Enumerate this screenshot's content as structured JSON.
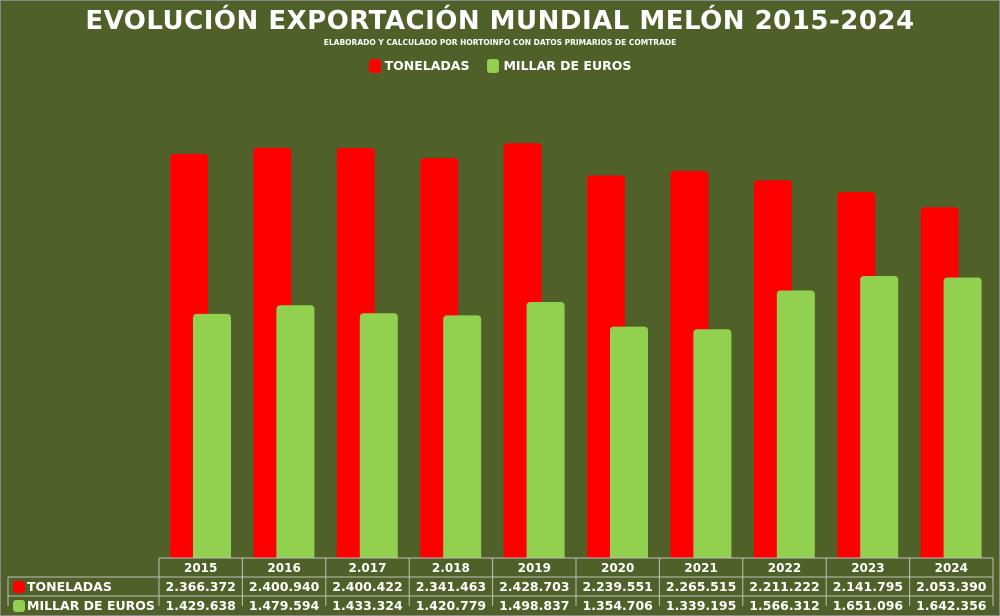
{
  "chart_data": {
    "type": "bar",
    "title": "EVOLUCIÓN EXPORTACIÓN MUNDIAL MELÓN 2015-2024",
    "subtitle": "ELABORADO Y CALCULADO POR HORTOINFO CON DATOS PRIMARIOS DE COMTRADE",
    "categories": [
      "2015",
      "2016",
      "2.017",
      "2.018",
      "2019",
      "2020",
      "2021",
      "2022",
      "2023",
      "2024"
    ],
    "series": [
      {
        "name": "TONELADAS",
        "color": "#ff0000",
        "values": [
          2366372,
          2400940,
          2400422,
          2341463,
          2428703,
          2239551,
          2265515,
          2211222,
          2141795,
          2053390
        ],
        "labels": [
          "2.366.372",
          "2.400.940",
          "2.400.422",
          "2.341.463",
          "2.428.703",
          "2.239.551",
          "2.265.515",
          "2.211.222",
          "2.141.795",
          "2.053.390"
        ]
      },
      {
        "name": "MILLAR DE EUROS",
        "color": "#92d050",
        "values": [
          1429638,
          1479594,
          1433324,
          1420779,
          1498837,
          1354706,
          1339195,
          1566312,
          1651096,
          1642356
        ],
        "labels": [
          "1.429.638",
          "1.479.594",
          "1.433.324",
          "1.420.779",
          "1.498.837",
          "1.354.706",
          "1.339.195",
          "1.566.312",
          "1.651.096",
          "1.642.356"
        ]
      }
    ],
    "ylim": [
      0,
      2500000
    ],
    "legend_position": "top",
    "grid": false,
    "data_table": true
  },
  "colors": {
    "background": "#4f6128",
    "text": "#ffffff",
    "table_border": "#c0c0c0"
  }
}
